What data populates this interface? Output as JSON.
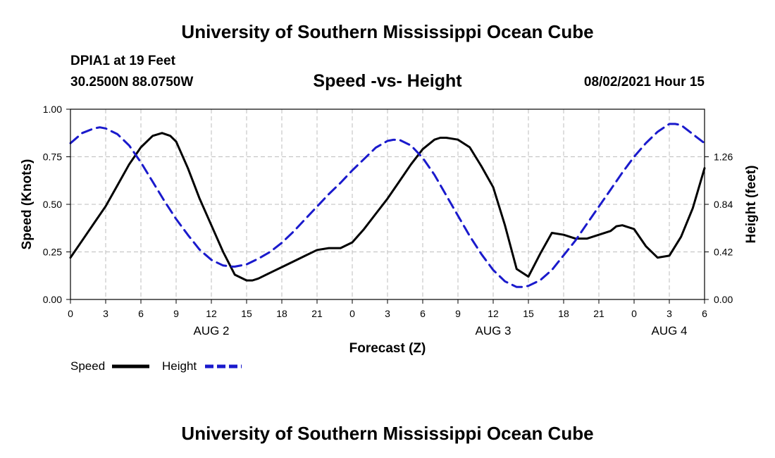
{
  "header": {
    "org_title": "University of Southern Mississippi Ocean Cube",
    "station": "DPIA1 at 19 Feet",
    "coordinates": "30.2500N  88.0750W",
    "chart_title": "Speed -vs- Height",
    "datetime": "08/02/2021 Hour 15"
  },
  "footer": {
    "org_title": "University of Southern Mississippi Ocean Cube"
  },
  "chart_data": {
    "type": "line",
    "title": "Speed -vs- Height",
    "xlabel": "Forecast (Z)",
    "ylabel": "Speed (Knots)",
    "y2label": "Height (feet)",
    "grid": true,
    "xlim": [
      0,
      54
    ],
    "ylim": [
      0,
      1.0
    ],
    "y2lim": [
      0,
      1.68
    ],
    "x_tick_values": [
      0,
      3,
      6,
      9,
      12,
      15,
      18,
      21,
      24,
      27,
      30,
      33,
      36,
      39,
      42,
      45,
      48,
      51,
      54
    ],
    "x_tick_labels": [
      "0",
      "3",
      "6",
      "9",
      "12",
      "15",
      "18",
      "21",
      "0",
      "3",
      "6",
      "9",
      "12",
      "15",
      "18",
      "21",
      "0",
      "3",
      "6"
    ],
    "date_labels": [
      {
        "x": 12,
        "label": "AUG 2"
      },
      {
        "x": 36,
        "label": "AUG 3"
      },
      {
        "x": 51,
        "label": "AUG 4"
      }
    ],
    "y_ticks": [
      0.0,
      0.25,
      0.5,
      0.75,
      1.0
    ],
    "y_tick_labels": [
      "0.00",
      "0.25",
      "0.50",
      "0.75",
      "1.00"
    ],
    "y2_ticks": [
      0.0,
      0.42,
      0.84,
      1.26
    ],
    "y2_tick_labels": [
      "0.00",
      "0.42",
      "0.84",
      "1.26"
    ],
    "legend_location": "bottom-left",
    "series": [
      {
        "name": "Speed",
        "axis": "left",
        "color": "#000000",
        "style": "solid",
        "x": [
          0,
          1,
          2,
          3,
          4,
          5,
          6,
          7,
          7.8,
          8.5,
          9,
          10,
          11,
          12,
          13,
          14,
          15,
          15.5,
          16,
          17,
          18,
          19,
          20,
          21,
          22,
          23,
          24,
          25,
          26,
          27,
          28,
          29,
          30,
          31,
          31.5,
          32,
          33,
          34,
          35,
          36,
          37,
          38,
          39,
          40,
          41,
          42,
          43,
          44,
          45,
          46,
          46.5,
          47,
          48,
          49,
          50,
          51,
          52,
          53,
          54
        ],
        "values": [
          0.22,
          0.31,
          0.4,
          0.49,
          0.6,
          0.71,
          0.8,
          0.86,
          0.875,
          0.86,
          0.83,
          0.69,
          0.53,
          0.39,
          0.25,
          0.13,
          0.1,
          0.1,
          0.11,
          0.14,
          0.17,
          0.2,
          0.23,
          0.26,
          0.27,
          0.27,
          0.3,
          0.37,
          0.45,
          0.53,
          0.62,
          0.71,
          0.79,
          0.84,
          0.85,
          0.85,
          0.84,
          0.8,
          0.7,
          0.59,
          0.39,
          0.16,
          0.12,
          0.24,
          0.35,
          0.34,
          0.32,
          0.32,
          0.34,
          0.36,
          0.385,
          0.39,
          0.37,
          0.28,
          0.22,
          0.23,
          0.33,
          0.48,
          0.69
        ]
      },
      {
        "name": "Height",
        "axis": "right",
        "color": "#1a1acc",
        "style": "dashed",
        "x": [
          0,
          1,
          2,
          2.5,
          3,
          4,
          5,
          6,
          7,
          8,
          9,
          10,
          11,
          12,
          13,
          13.8,
          14,
          15,
          16,
          17,
          18,
          19,
          20,
          21,
          22,
          23,
          24,
          25,
          26,
          27,
          27.5,
          28,
          29,
          30,
          31,
          32,
          33,
          34,
          35,
          36,
          37,
          38,
          38.5,
          39,
          40,
          41,
          42,
          43,
          44,
          45,
          46,
          47,
          48,
          49,
          50,
          51,
          51.5,
          52,
          53,
          54
        ],
        "values": [
          1.38,
          1.47,
          1.51,
          1.52,
          1.51,
          1.46,
          1.36,
          1.21,
          1.04,
          0.87,
          0.71,
          0.57,
          0.44,
          0.35,
          0.3,
          0.29,
          0.29,
          0.31,
          0.36,
          0.42,
          0.5,
          0.6,
          0.71,
          0.82,
          0.93,
          1.03,
          1.14,
          1.24,
          1.34,
          1.4,
          1.41,
          1.41,
          1.36,
          1.25,
          1.1,
          0.92,
          0.74,
          0.56,
          0.4,
          0.26,
          0.16,
          0.11,
          0.11,
          0.12,
          0.17,
          0.26,
          0.39,
          0.52,
          0.67,
          0.82,
          0.97,
          1.12,
          1.26,
          1.38,
          1.48,
          1.55,
          1.55,
          1.54,
          1.46,
          1.38
        ]
      }
    ]
  }
}
